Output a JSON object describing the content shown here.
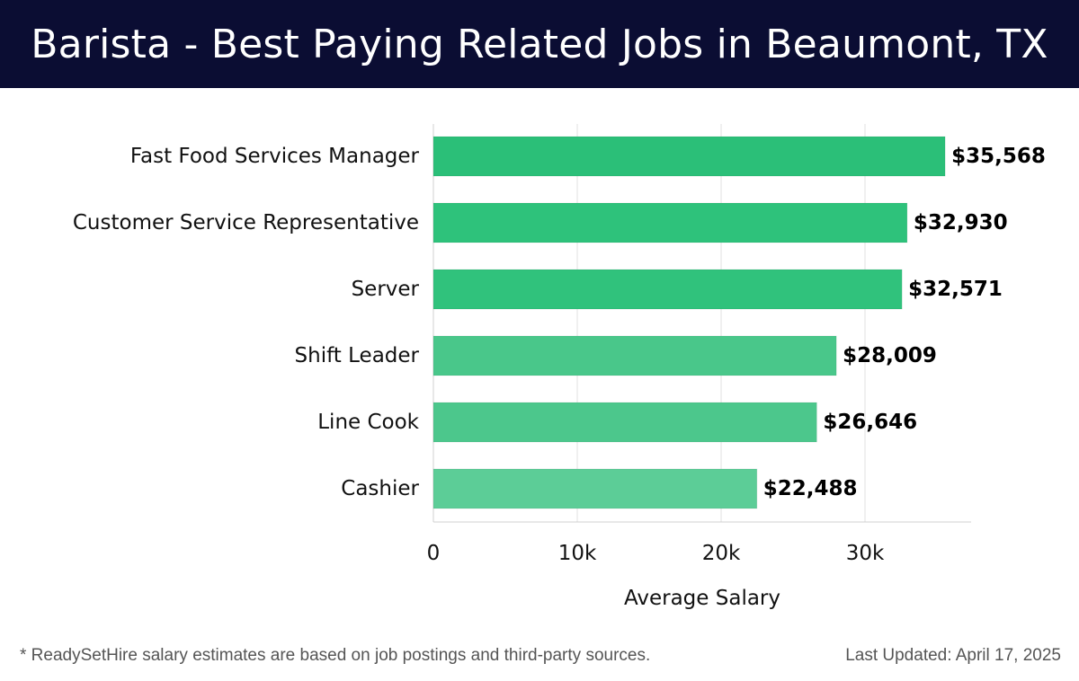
{
  "header": {
    "title": "Barista - Best Paying Related Jobs in Beaumont, TX"
  },
  "footer": {
    "note": "* ReadySetHire salary estimates are based on job postings and third-party sources.",
    "updated": "Last Updated: April 17, 2025"
  },
  "chart_data": {
    "type": "bar",
    "orientation": "horizontal",
    "title": "Barista - Best Paying Related Jobs in Beaumont, TX",
    "xlabel": "Average Salary",
    "ylabel": "",
    "xlim": [
      0,
      37500
    ],
    "xticks": [
      0,
      10000,
      20000,
      30000
    ],
    "xtick_labels": [
      "0",
      "10k",
      "20k",
      "30k"
    ],
    "grid": true,
    "categories": [
      "Fast Food Services Manager",
      "Customer Service Representative",
      "Server",
      "Shift Leader",
      "Line Cook",
      "Cashier"
    ],
    "values": [
      35568,
      32930,
      32571,
      28009,
      26646,
      22488
    ],
    "value_labels": [
      "$35,568",
      "$32,930",
      "$32,571",
      "$28,009",
      "$26,646",
      "$22,488"
    ],
    "colors": [
      "#2bbf78",
      "#2ec27b",
      "#30c27c",
      "#49c78a",
      "#4cc78c",
      "#5ccd97"
    ]
  }
}
